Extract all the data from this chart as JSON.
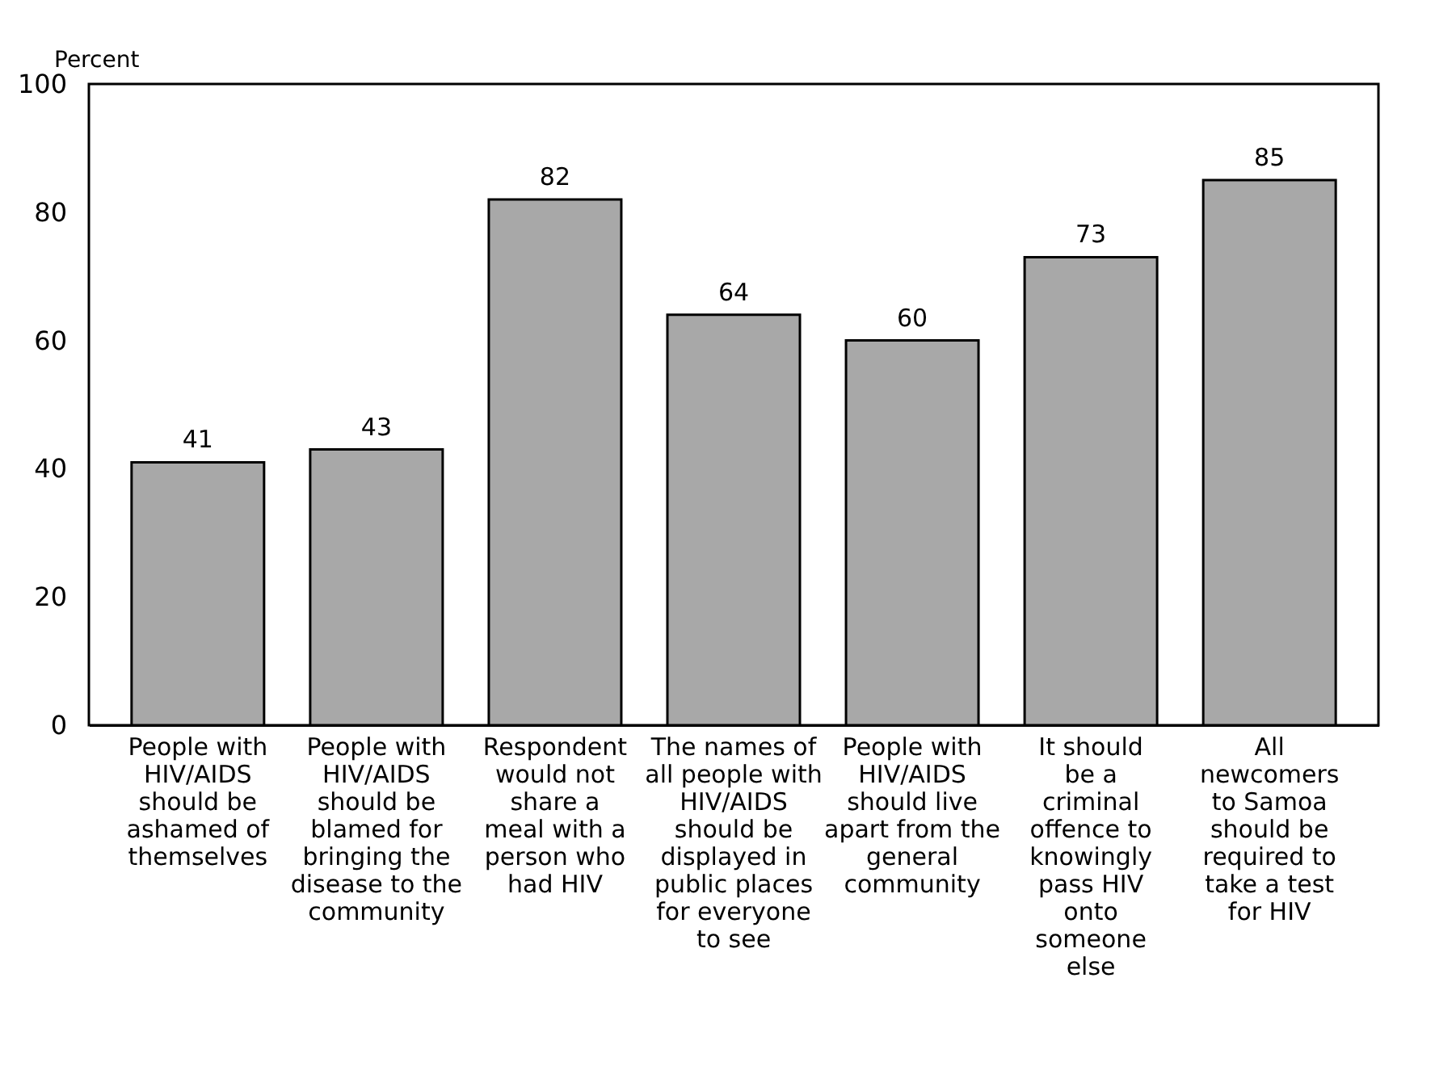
{
  "chart_data": {
    "type": "bar",
    "ylabel": "Percent",
    "categories": [
      "People with\nHIV/AIDS\nshould be\nashamed of\nthemselves",
      "People with\nHIV/AIDS\nshould be\nblamed for\nbringing the\ndisease to the\ncommunity",
      "Respondent\nwould not\nshare a\nmeal with a\nperson who\nhad HIV",
      "The names of\nall people with\nHIV/AIDS\nshould be\ndisplayed in\npublic places\nfor everyone\nto see",
      "People with\nHIV/AIDS\nshould live\napart from the\ngeneral\ncommunity",
      "It should\nbe a\ncriminal\noffence to\nknowingly\npass HIV\nonto\nsomeone\nelse",
      "All\nnewcomers\nto Samoa\nshould be\nrequired to\ntake a test\nfor HIV"
    ],
    "values": [
      41,
      43,
      82,
      64,
      60,
      73,
      85
    ],
    "color": "#a8a8a8",
    "ylim": [
      0,
      100
    ],
    "yticks": [
      0,
      20,
      40,
      60,
      80,
      100
    ],
    "data_labels": true,
    "grid": false
  }
}
